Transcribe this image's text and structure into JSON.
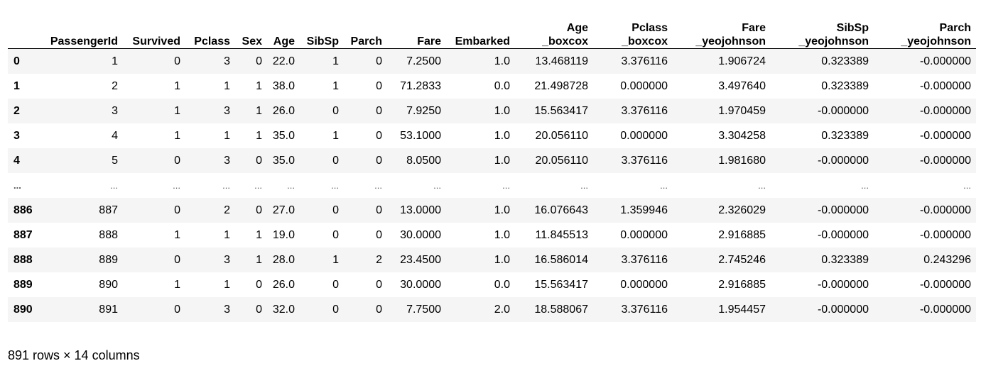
{
  "table": {
    "columns": [
      "",
      "PassengerId",
      "Survived",
      "Pclass",
      "Sex",
      "Age",
      "SibSp",
      "Parch",
      "Fare",
      "Embarked",
      "Age\n_boxcox",
      "Pclass\n_boxcox",
      "Fare\n_yeojohnson",
      "SibSp\n_yeojohnson",
      "Parch\n_yeojohnson"
    ],
    "rows": [
      [
        "0",
        "1",
        "0",
        "3",
        "0",
        "22.0",
        "1",
        "0",
        "7.2500",
        "1.0",
        "13.468119",
        "3.376116",
        "1.906724",
        "0.323389",
        "-0.000000"
      ],
      [
        "1",
        "2",
        "1",
        "1",
        "1",
        "38.0",
        "1",
        "0",
        "71.2833",
        "0.0",
        "21.498728",
        "0.000000",
        "3.497640",
        "0.323389",
        "-0.000000"
      ],
      [
        "2",
        "3",
        "1",
        "3",
        "1",
        "26.0",
        "0",
        "0",
        "7.9250",
        "1.0",
        "15.563417",
        "3.376116",
        "1.970459",
        "-0.000000",
        "-0.000000"
      ],
      [
        "3",
        "4",
        "1",
        "1",
        "1",
        "35.0",
        "1",
        "0",
        "53.1000",
        "1.0",
        "20.056110",
        "0.000000",
        "3.304258",
        "0.323389",
        "-0.000000"
      ],
      [
        "4",
        "5",
        "0",
        "3",
        "0",
        "35.0",
        "0",
        "0",
        "8.0500",
        "1.0",
        "20.056110",
        "3.376116",
        "1.981680",
        "-0.000000",
        "-0.000000"
      ],
      [
        "...",
        "...",
        "...",
        "...",
        "...",
        "...",
        "...",
        "...",
        "...",
        "...",
        "...",
        "...",
        "...",
        "...",
        "..."
      ],
      [
        "886",
        "887",
        "0",
        "2",
        "0",
        "27.0",
        "0",
        "0",
        "13.0000",
        "1.0",
        "16.076643",
        "1.359946",
        "2.326029",
        "-0.000000",
        "-0.000000"
      ],
      [
        "887",
        "888",
        "1",
        "1",
        "1",
        "19.0",
        "0",
        "0",
        "30.0000",
        "1.0",
        "11.845513",
        "0.000000",
        "2.916885",
        "-0.000000",
        "-0.000000"
      ],
      [
        "888",
        "889",
        "0",
        "3",
        "1",
        "28.0",
        "1",
        "2",
        "23.4500",
        "1.0",
        "16.586014",
        "3.376116",
        "2.745246",
        "0.323389",
        "0.243296"
      ],
      [
        "889",
        "890",
        "1",
        "1",
        "0",
        "26.0",
        "0",
        "0",
        "30.0000",
        "0.0",
        "15.563417",
        "0.000000",
        "2.916885",
        "-0.000000",
        "-0.000000"
      ],
      [
        "890",
        "891",
        "0",
        "3",
        "0",
        "32.0",
        "0",
        "0",
        "7.7500",
        "2.0",
        "18.588067",
        "3.376116",
        "1.954457",
        "-0.000000",
        "-0.000000"
      ]
    ]
  },
  "summary": "891 rows × 14 columns"
}
